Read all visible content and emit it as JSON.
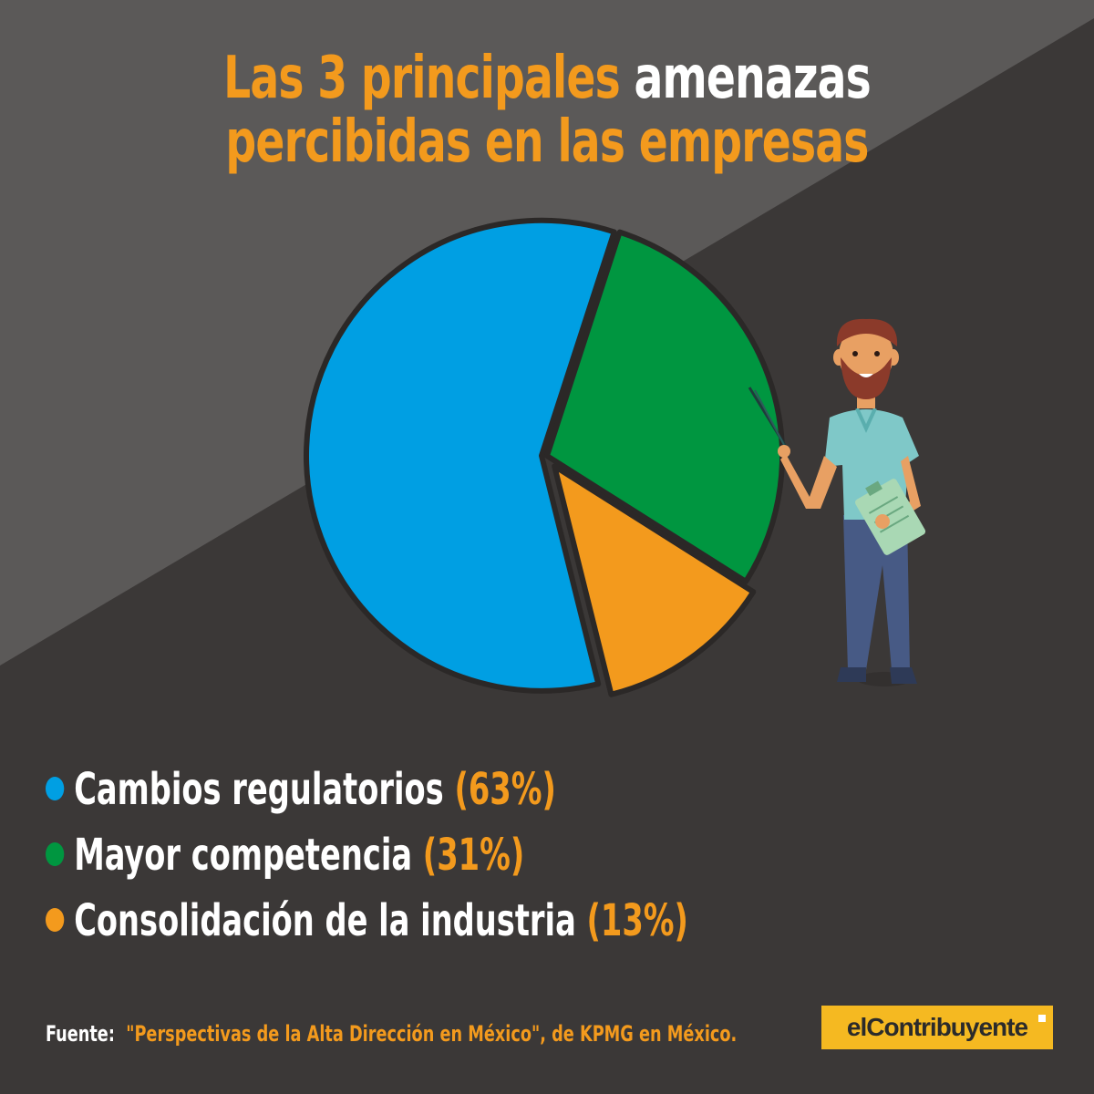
{
  "title": {
    "line1_orange": "Las 3 principales",
    "line1_white": "amenazas",
    "line2_orange": "percibidas en las empresas"
  },
  "colors": {
    "blue": "#009fe3",
    "green": "#009640",
    "orange": "#f39a1d",
    "bg_dark": "#3b3837",
    "bg_light": "#5b5958",
    "brand_yellow": "#f5b921"
  },
  "chart_data": {
    "type": "pie",
    "categories": [
      "Cambios regulatorios",
      "Mayor competencia",
      "Consolidación de la industria"
    ],
    "values": [
      63,
      31,
      13
    ],
    "labels": [
      "(63%)",
      "(31%)",
      "(13%)"
    ],
    "colors": [
      "#009fe3",
      "#009640",
      "#f39a1d"
    ],
    "legend_position": "bottom"
  },
  "source": {
    "label": "Fuente:",
    "text": "\"Perspectivas de la Alta Dirección en México\", de KPMG en México."
  },
  "brand": {
    "text": "elContribuyente"
  },
  "icons": {
    "illustration": "presenter-with-clipboard-icon"
  }
}
